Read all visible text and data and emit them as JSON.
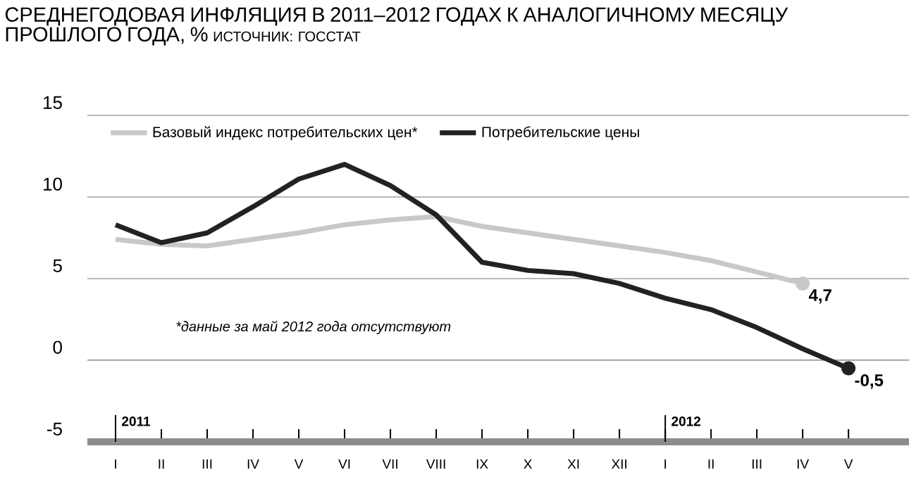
{
  "chart_data": {
    "type": "line",
    "title": "СРЕДНЕГОДОВАЯ ИНФЛЯЦИЯ В 2011–2012 ГОДАХ К АНАЛОГИЧНОМУ МЕСЯЦУ ПРОШЛОГО ГОДА, %",
    "categories": [
      "I",
      "II",
      "III",
      "IV",
      "V",
      "VI",
      "VII",
      "VIII",
      "IX",
      "X",
      "XI",
      "XII",
      "I",
      "II",
      "III",
      "IV",
      "V"
    ],
    "series": [
      {
        "name": "Базовый индекс потребительских цен*",
        "color": "#c8c8c8",
        "values": [
          7.4,
          7.1,
          7.0,
          7.4,
          7.8,
          8.3,
          8.6,
          8.8,
          8.2,
          7.8,
          7.4,
          7.0,
          6.6,
          6.1,
          5.4,
          4.7,
          null
        ],
        "value_labels": [
          null,
          null,
          null,
          null,
          null,
          null,
          null,
          null,
          null,
          null,
          null,
          null,
          null,
          null,
          null,
          "4,7",
          null
        ]
      },
      {
        "name": "Потребительские цены",
        "color": "#222222",
        "values": [
          8.3,
          7.2,
          7.8,
          9.4,
          11.1,
          12.0,
          10.7,
          8.9,
          6.0,
          5.5,
          5.3,
          4.7,
          3.8,
          3.1,
          2.0,
          0.7,
          -0.5
        ],
        "value_labels": [
          null,
          null,
          null,
          null,
          null,
          null,
          null,
          null,
          null,
          null,
          null,
          null,
          null,
          null,
          null,
          null,
          "-0,5"
        ]
      }
    ],
    "ylim": [
      -5,
      15
    ],
    "yticks": [
      -5,
      0,
      5,
      10,
      15
    ],
    "grid": "y",
    "legend": "top",
    "marker": "none",
    "line_style": "solid",
    "annotations": [
      "ИСТОЧНИК: ГОССТАТ",
      "*данные за май 2012 года отсутствуют",
      "2011",
      "2012"
    ]
  }
}
